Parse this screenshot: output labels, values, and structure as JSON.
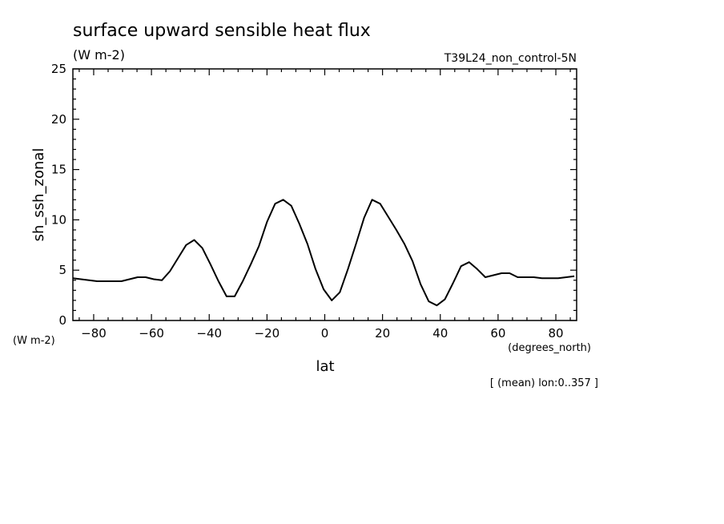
{
  "chart_data": {
    "type": "line",
    "title": "surface upward sensible heat flux",
    "units": "(W m-2)",
    "run_label": "T39L24_non_control-5N",
    "xlabel": "lat",
    "xunits": "(degrees_north)",
    "ylabel": "sh_ssh_zonal",
    "yunits": "(W m-2)",
    "footnote": "[ (mean) lon:0..357 ]",
    "xlim": [
      -87.2,
      87.2
    ],
    "ylim": [
      0,
      25
    ],
    "xticks": [
      -80,
      -60,
      -40,
      -20,
      0,
      20,
      40,
      60,
      80
    ],
    "yticks": [
      0,
      5,
      10,
      15,
      20,
      25
    ],
    "series": [
      {
        "x": [
          -87.2,
          -84.4,
          -81.6,
          -78.8,
          -76.0,
          -73.2,
          -70.4,
          -67.6,
          -64.8,
          -62.0,
          -59.2,
          -56.4,
          -53.6,
          -50.8,
          -48.0,
          -45.2,
          -42.4,
          -39.6,
          -36.8,
          -34.0,
          -31.2,
          -28.4,
          -25.6,
          -22.8,
          -20.0,
          -17.2,
          -14.4,
          -11.6,
          -8.8,
          -6.0,
          -3.2,
          -0.4,
          2.4,
          5.2,
          8.0,
          10.8,
          13.6,
          16.4,
          19.2,
          22.0,
          24.8,
          27.6,
          30.4,
          33.2,
          36.0,
          38.8,
          41.6,
          44.4,
          47.2,
          50.0,
          52.8,
          55.6,
          58.4,
          61.2,
          64.0,
          66.8,
          69.6,
          72.4,
          75.2,
          78.0,
          80.8,
          83.6,
          86.4
        ],
        "values": [
          4.2,
          4.1,
          4.0,
          3.9,
          3.9,
          3.9,
          3.9,
          4.1,
          4.3,
          4.3,
          4.1,
          4.0,
          4.9,
          6.2,
          7.5,
          8.0,
          7.2,
          5.6,
          3.9,
          2.4,
          2.4,
          3.9,
          5.6,
          7.4,
          9.8,
          11.6,
          12.0,
          11.4,
          9.6,
          7.6,
          5.1,
          3.1,
          2.0,
          2.8,
          5.1,
          7.6,
          10.2,
          12.0,
          11.6,
          10.3,
          9.0,
          7.6,
          5.9,
          3.6,
          1.9,
          1.5,
          2.1,
          3.7,
          5.4,
          5.8,
          5.1,
          4.3,
          4.5,
          4.7,
          4.7,
          4.3,
          4.3,
          4.3,
          4.2,
          4.2,
          4.2,
          4.3,
          4.4
        ]
      }
    ]
  }
}
